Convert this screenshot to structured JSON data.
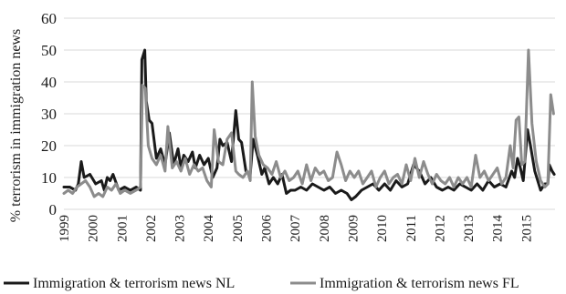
{
  "chart_data": {
    "type": "line",
    "title": "",
    "ylabel": "% terrorism in immigration news",
    "xlabel": "",
    "ylim": [
      0,
      60
    ],
    "yticks": [
      0,
      10,
      20,
      30,
      40,
      50,
      60
    ],
    "xlim": [
      1999.0,
      2016.0
    ],
    "xticks": [
      "1999",
      "2000",
      "2001",
      "2002",
      "2003",
      "2004",
      "2005",
      "2006",
      "2007",
      "2008",
      "2009",
      "2010",
      "2011",
      "2012",
      "2013",
      "2014",
      "2015"
    ],
    "grid": "horizontal",
    "legend": "bottom",
    "colors": {
      "nl": "#1a1a1a",
      "fl": "#8c8c8c",
      "grid": "#d9d9d9"
    },
    "series": [
      {
        "name": "Immigration & terrorism news NL",
        "points": [
          [
            1999.0,
            7
          ],
          [
            1999.2,
            7
          ],
          [
            1999.4,
            6
          ],
          [
            1999.5,
            8
          ],
          [
            1999.6,
            15
          ],
          [
            1999.7,
            10
          ],
          [
            1999.9,
            11
          ],
          [
            2000.1,
            8
          ],
          [
            2000.3,
            9
          ],
          [
            2000.4,
            6
          ],
          [
            2000.5,
            10
          ],
          [
            2000.6,
            9
          ],
          [
            2000.7,
            11
          ],
          [
            2000.9,
            6
          ],
          [
            2001.1,
            7
          ],
          [
            2001.3,
            6
          ],
          [
            2001.5,
            7
          ],
          [
            2001.65,
            6
          ],
          [
            2001.7,
            47
          ],
          [
            2001.8,
            50
          ],
          [
            2001.85,
            34
          ],
          [
            2001.95,
            28
          ],
          [
            2002.05,
            27
          ],
          [
            2002.2,
            16
          ],
          [
            2002.35,
            19
          ],
          [
            2002.5,
            14
          ],
          [
            2002.65,
            24
          ],
          [
            2002.8,
            14
          ],
          [
            2002.95,
            19
          ],
          [
            2003.05,
            13
          ],
          [
            2003.15,
            17
          ],
          [
            2003.3,
            15
          ],
          [
            2003.45,
            18
          ],
          [
            2003.55,
            13
          ],
          [
            2003.7,
            17
          ],
          [
            2003.85,
            14
          ],
          [
            2004.0,
            16
          ],
          [
            2004.15,
            10
          ],
          [
            2004.3,
            13
          ],
          [
            2004.4,
            22
          ],
          [
            2004.5,
            20
          ],
          [
            2004.65,
            21
          ],
          [
            2004.8,
            15
          ],
          [
            2004.95,
            31
          ],
          [
            2005.05,
            22
          ],
          [
            2005.15,
            21
          ],
          [
            2005.3,
            12
          ],
          [
            2005.45,
            11
          ],
          [
            2005.55,
            22
          ],
          [
            2005.7,
            17
          ],
          [
            2005.85,
            11
          ],
          [
            2005.95,
            13
          ],
          [
            2006.1,
            8
          ],
          [
            2006.25,
            10
          ],
          [
            2006.4,
            8
          ],
          [
            2006.55,
            11
          ],
          [
            2006.7,
            5
          ],
          [
            2006.85,
            6
          ],
          [
            2007.0,
            6
          ],
          [
            2007.2,
            7
          ],
          [
            2007.4,
            6
          ],
          [
            2007.6,
            8
          ],
          [
            2007.8,
            7
          ],
          [
            2008.0,
            6
          ],
          [
            2008.2,
            7
          ],
          [
            2008.4,
            5
          ],
          [
            2008.6,
            6
          ],
          [
            2008.8,
            5
          ],
          [
            2008.95,
            3
          ],
          [
            2009.1,
            4
          ],
          [
            2009.3,
            6
          ],
          [
            2009.5,
            7
          ],
          [
            2009.7,
            8
          ],
          [
            2009.9,
            6
          ],
          [
            2010.1,
            8
          ],
          [
            2010.3,
            6
          ],
          [
            2010.5,
            9
          ],
          [
            2010.7,
            7
          ],
          [
            2010.9,
            8
          ],
          [
            2011.1,
            14
          ],
          [
            2011.3,
            12
          ],
          [
            2011.5,
            8
          ],
          [
            2011.7,
            10
          ],
          [
            2011.9,
            7
          ],
          [
            2012.1,
            6
          ],
          [
            2012.3,
            7
          ],
          [
            2012.5,
            6
          ],
          [
            2012.7,
            8
          ],
          [
            2012.9,
            7
          ],
          [
            2013.1,
            6
          ],
          [
            2013.3,
            8
          ],
          [
            2013.5,
            6
          ],
          [
            2013.7,
            9
          ],
          [
            2013.9,
            7
          ],
          [
            2014.1,
            8
          ],
          [
            2014.3,
            7
          ],
          [
            2014.5,
            12
          ],
          [
            2014.6,
            10
          ],
          [
            2014.7,
            16
          ],
          [
            2014.8,
            13
          ],
          [
            2014.9,
            9
          ],
          [
            2015.05,
            25
          ],
          [
            2015.15,
            20
          ],
          [
            2015.3,
            12
          ],
          [
            2015.5,
            6
          ],
          [
            2015.65,
            8
          ],
          [
            2015.75,
            8
          ],
          [
            2015.8,
            14
          ],
          [
            2015.9,
            12
          ],
          [
            2015.97,
            11
          ]
        ]
      },
      {
        "name": "Immigration & terrorism news FL",
        "points": [
          [
            1999.0,
            5
          ],
          [
            1999.15,
            6
          ],
          [
            1999.3,
            5
          ],
          [
            1999.45,
            7
          ],
          [
            1999.6,
            8
          ],
          [
            1999.75,
            9
          ],
          [
            1999.9,
            7
          ],
          [
            2000.05,
            4
          ],
          [
            2000.2,
            5
          ],
          [
            2000.35,
            4
          ],
          [
            2000.5,
            7
          ],
          [
            2000.65,
            6
          ],
          [
            2000.8,
            8
          ],
          [
            2000.95,
            5
          ],
          [
            2001.1,
            6
          ],
          [
            2001.3,
            5
          ],
          [
            2001.5,
            6
          ],
          [
            2001.65,
            7
          ],
          [
            2001.72,
            39
          ],
          [
            2001.82,
            38
          ],
          [
            2001.92,
            20
          ],
          [
            2002.05,
            16
          ],
          [
            2002.2,
            14
          ],
          [
            2002.35,
            17
          ],
          [
            2002.5,
            12
          ],
          [
            2002.6,
            26
          ],
          [
            2002.75,
            13
          ],
          [
            2002.9,
            15
          ],
          [
            2003.05,
            12
          ],
          [
            2003.2,
            16
          ],
          [
            2003.35,
            11
          ],
          [
            2003.5,
            14
          ],
          [
            2003.65,
            12
          ],
          [
            2003.8,
            13
          ],
          [
            2003.95,
            9
          ],
          [
            2004.1,
            7
          ],
          [
            2004.2,
            25
          ],
          [
            2004.35,
            15
          ],
          [
            2004.5,
            14
          ],
          [
            2004.65,
            22
          ],
          [
            2004.8,
            24
          ],
          [
            2004.95,
            12
          ],
          [
            2005.05,
            11
          ],
          [
            2005.2,
            10
          ],
          [
            2005.35,
            12
          ],
          [
            2005.45,
            9
          ],
          [
            2005.52,
            40
          ],
          [
            2005.62,
            23
          ],
          [
            2005.75,
            17
          ],
          [
            2005.9,
            14
          ],
          [
            2006.05,
            13
          ],
          [
            2006.2,
            11
          ],
          [
            2006.35,
            15
          ],
          [
            2006.5,
            10
          ],
          [
            2006.65,
            12
          ],
          [
            2006.8,
            9
          ],
          [
            2006.95,
            10
          ],
          [
            2007.1,
            12
          ],
          [
            2007.25,
            8
          ],
          [
            2007.4,
            14
          ],
          [
            2007.55,
            9
          ],
          [
            2007.7,
            13
          ],
          [
            2007.85,
            11
          ],
          [
            2008.0,
            12
          ],
          [
            2008.15,
            9
          ],
          [
            2008.3,
            10
          ],
          [
            2008.45,
            18
          ],
          [
            2008.6,
            14
          ],
          [
            2008.75,
            9
          ],
          [
            2008.9,
            12
          ],
          [
            2009.05,
            10
          ],
          [
            2009.2,
            12
          ],
          [
            2009.35,
            8
          ],
          [
            2009.5,
            10
          ],
          [
            2009.65,
            12
          ],
          [
            2009.8,
            7
          ],
          [
            2009.95,
            10
          ],
          [
            2010.1,
            12
          ],
          [
            2010.25,
            8
          ],
          [
            2010.4,
            10
          ],
          [
            2010.55,
            11
          ],
          [
            2010.7,
            8
          ],
          [
            2010.85,
            14
          ],
          [
            2011.0,
            9
          ],
          [
            2011.15,
            16
          ],
          [
            2011.3,
            10
          ],
          [
            2011.45,
            15
          ],
          [
            2011.6,
            11
          ],
          [
            2011.75,
            8
          ],
          [
            2011.9,
            11
          ],
          [
            2012.05,
            9
          ],
          [
            2012.2,
            8
          ],
          [
            2012.35,
            10
          ],
          [
            2012.5,
            7
          ],
          [
            2012.65,
            10
          ],
          [
            2012.8,
            8
          ],
          [
            2012.95,
            10
          ],
          [
            2013.1,
            7
          ],
          [
            2013.25,
            17
          ],
          [
            2013.4,
            10
          ],
          [
            2013.55,
            12
          ],
          [
            2013.7,
            9
          ],
          [
            2013.85,
            11
          ],
          [
            2014.0,
            13
          ],
          [
            2014.15,
            8
          ],
          [
            2014.3,
            10
          ],
          [
            2014.45,
            20
          ],
          [
            2014.55,
            13
          ],
          [
            2014.65,
            28
          ],
          [
            2014.75,
            29
          ],
          [
            2014.85,
            14
          ],
          [
            2014.95,
            15
          ],
          [
            2015.08,
            50
          ],
          [
            2015.2,
            27
          ],
          [
            2015.35,
            15
          ],
          [
            2015.5,
            9
          ],
          [
            2015.65,
            7
          ],
          [
            2015.75,
            8
          ],
          [
            2015.85,
            36
          ],
          [
            2015.95,
            30
          ]
        ]
      }
    ]
  }
}
